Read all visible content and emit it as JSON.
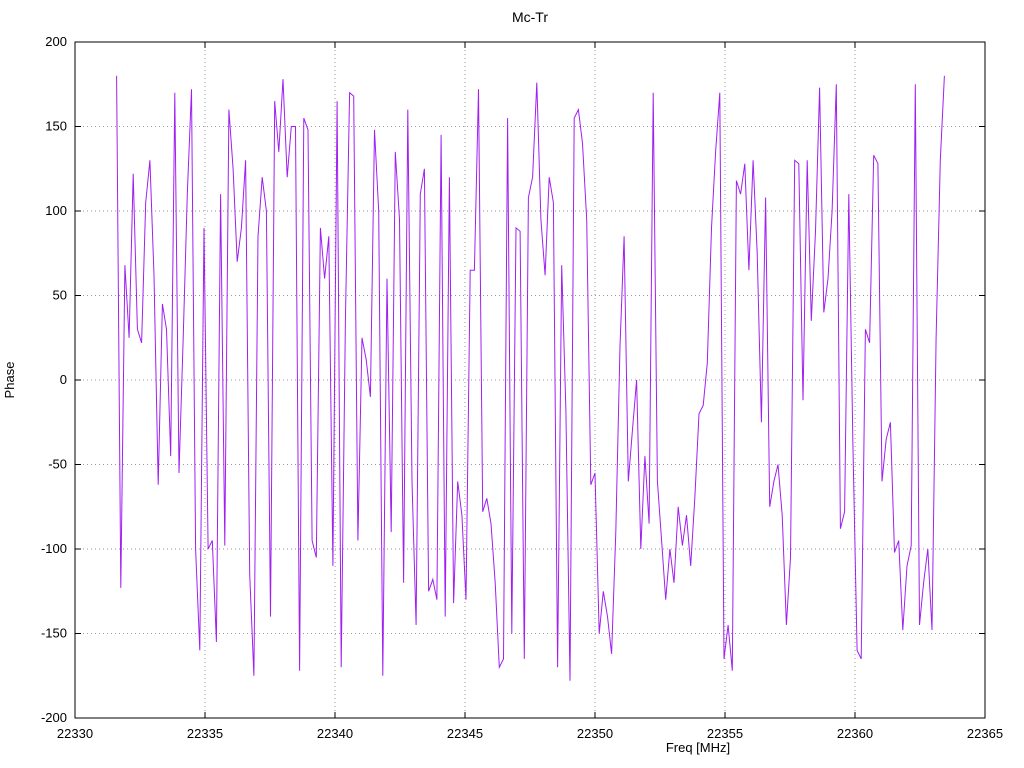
{
  "chart_data": {
    "type": "line",
    "title": "Mc-Tr",
    "xlabel": "Freq [MHz]",
    "ylabel": "Phase",
    "xlim": [
      22330,
      22365
    ],
    "ylim": [
      -200,
      200
    ],
    "x_ticks": [
      22330,
      22335,
      22340,
      22345,
      22350,
      22355,
      22360,
      22365
    ],
    "y_ticks": [
      -200,
      -150,
      -100,
      -50,
      0,
      50,
      100,
      150,
      200
    ],
    "grid": "dotted",
    "legend": "none",
    "line_color": "#a020f0",
    "grid_color": "#9a9a9a",
    "border_color": "#000000",
    "series": [
      {
        "name": "Mc-Tr",
        "x_start": 22331.6,
        "x_step": 0.16,
        "values": [
          180,
          -123,
          68,
          25,
          122,
          30,
          22,
          105,
          130,
          62,
          -62,
          45,
          30,
          -45,
          170,
          -55,
          25,
          110,
          172,
          -100,
          -160,
          90,
          -100,
          -95,
          -155,
          110,
          -98,
          160,
          125,
          70,
          90,
          130,
          -115,
          -175,
          85,
          120,
          100,
          -140,
          165,
          135,
          178,
          120,
          150,
          150,
          -172,
          155,
          148,
          -95,
          -105,
          90,
          60,
          85,
          -110,
          165,
          -170,
          35,
          170,
          168,
          -95,
          25,
          12,
          -10,
          148,
          100,
          -175,
          60,
          -90,
          135,
          95,
          -120,
          160,
          -60,
          -145,
          110,
          125,
          -125,
          -118,
          -130,
          145,
          -140,
          120,
          -132,
          -60,
          -80,
          -130,
          65,
          65,
          172,
          -78,
          -70,
          -85,
          -120,
          -170,
          -165,
          155,
          -150,
          90,
          88,
          -165,
          108,
          120,
          176,
          95,
          62,
          120,
          105,
          -170,
          68,
          -18,
          -178,
          155,
          160,
          140,
          95,
          -62,
          -55,
          -150,
          -125,
          -140,
          -162,
          -90,
          20,
          85,
          -60,
          -30,
          0,
          -100,
          -45,
          -85,
          170,
          -60,
          -95,
          -130,
          -100,
          -120,
          -75,
          -98,
          -80,
          -110,
          -70,
          -20,
          -15,
          10,
          90,
          135,
          170,
          -165,
          -145,
          -172,
          118,
          110,
          128,
          65,
          130,
          75,
          -25,
          108,
          -75,
          -60,
          -50,
          -80,
          -145,
          -105,
          130,
          128,
          -12,
          130,
          35,
          88,
          173,
          40,
          60,
          100,
          175,
          -88,
          -78,
          110,
          -38,
          -160,
          -165,
          30,
          22,
          133,
          128,
          -60,
          -35,
          -25,
          -102,
          -95,
          -148,
          -110,
          -98,
          175,
          -145,
          -120,
          -100,
          -148,
          25,
          130,
          180
        ]
      }
    ]
  }
}
